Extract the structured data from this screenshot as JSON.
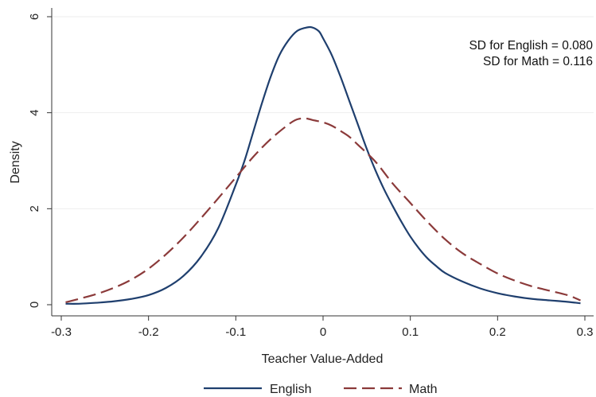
{
  "chart_data": {
    "type": "line",
    "title": "",
    "xlabel": "Teacher Value-Added",
    "ylabel": "Density",
    "xlim": [
      -0.3,
      0.3
    ],
    "ylim": [
      0,
      6
    ],
    "xticks": [
      -0.3,
      -0.2,
      -0.1,
      0,
      0.1,
      0.2,
      0.3
    ],
    "xtick_labels": [
      "-0.3",
      "-0.2",
      "-0.1",
      "0",
      "0.1",
      "0.2",
      "0.3"
    ],
    "yticks": [
      0,
      2,
      4,
      6
    ],
    "ytick_labels": [
      "0",
      "2",
      "4",
      "6"
    ],
    "grid": "horizontal",
    "legend": "bottom",
    "annotations": [
      "SD for English = 0.080",
      "SD for Math = 0.116"
    ],
    "series": [
      {
        "name": "English",
        "color": "#1f3f6e",
        "dash": "solid",
        "x": [
          -0.295,
          -0.28,
          -0.26,
          -0.24,
          -0.22,
          -0.2,
          -0.18,
          -0.16,
          -0.14,
          -0.12,
          -0.1,
          -0.09,
          -0.08,
          -0.07,
          -0.06,
          -0.05,
          -0.04,
          -0.03,
          -0.02,
          -0.013,
          -0.005,
          0,
          0.01,
          0.02,
          0.03,
          0.04,
          0.05,
          0.06,
          0.07,
          0.08,
          0.09,
          0.1,
          0.11,
          0.12,
          0.13,
          0.14,
          0.16,
          0.18,
          0.2,
          0.22,
          0.24,
          0.26,
          0.28,
          0.295
        ],
        "y": [
          0.02,
          0.02,
          0.04,
          0.07,
          0.12,
          0.2,
          0.35,
          0.6,
          1.0,
          1.6,
          2.5,
          3.0,
          3.6,
          4.2,
          4.75,
          5.2,
          5.5,
          5.7,
          5.77,
          5.78,
          5.7,
          5.55,
          5.2,
          4.75,
          4.25,
          3.75,
          3.25,
          2.8,
          2.4,
          2.05,
          1.72,
          1.42,
          1.17,
          0.96,
          0.8,
          0.66,
          0.48,
          0.34,
          0.24,
          0.17,
          0.12,
          0.09,
          0.06,
          0.03
        ]
      },
      {
        "name": "Math",
        "color": "#8b3a3a",
        "dash": "dashed",
        "x": [
          -0.295,
          -0.28,
          -0.26,
          -0.24,
          -0.22,
          -0.2,
          -0.18,
          -0.16,
          -0.14,
          -0.12,
          -0.1,
          -0.08,
          -0.06,
          -0.04,
          -0.03,
          -0.02,
          -0.01,
          0,
          0.01,
          0.02,
          0.03,
          0.04,
          0.06,
          0.08,
          0.1,
          0.12,
          0.14,
          0.16,
          0.18,
          0.2,
          0.22,
          0.24,
          0.26,
          0.28,
          0.295
        ],
        "y": [
          0.05,
          0.12,
          0.22,
          0.35,
          0.52,
          0.75,
          1.05,
          1.4,
          1.8,
          2.22,
          2.65,
          3.08,
          3.45,
          3.75,
          3.86,
          3.88,
          3.84,
          3.8,
          3.73,
          3.62,
          3.5,
          3.33,
          2.98,
          2.52,
          2.12,
          1.72,
          1.36,
          1.07,
          0.85,
          0.65,
          0.5,
          0.38,
          0.29,
          0.2,
          0.09
        ]
      }
    ]
  }
}
